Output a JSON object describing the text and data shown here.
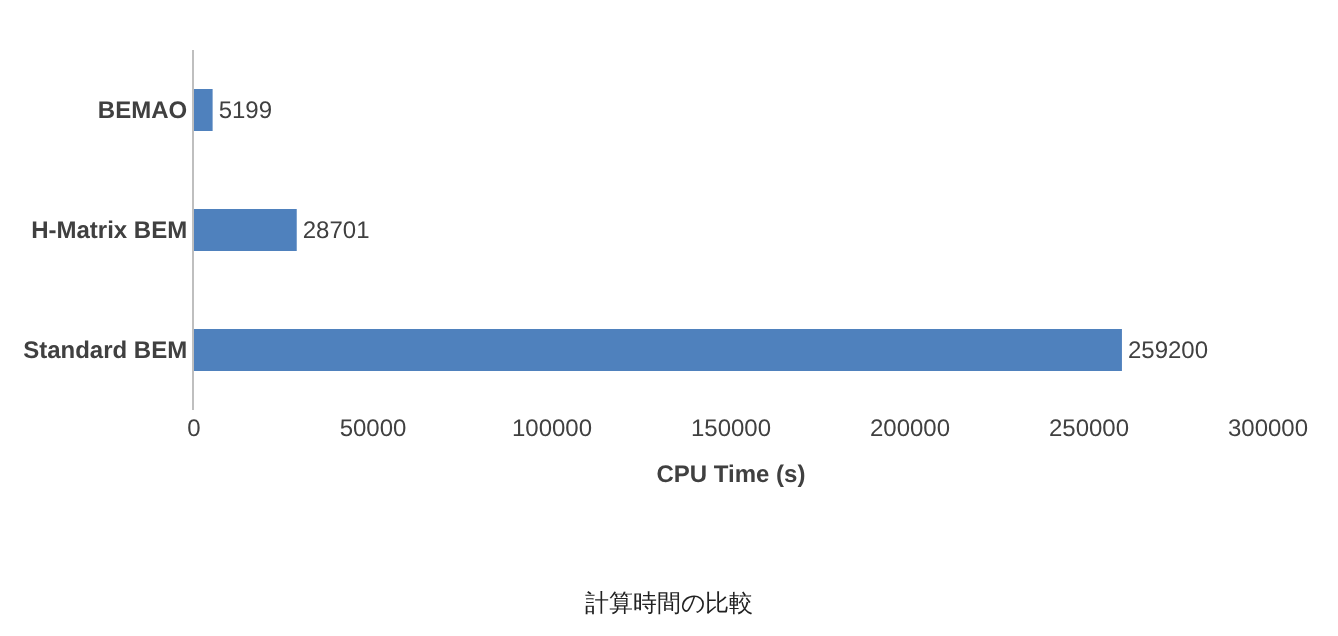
{
  "chart_data": {
    "type": "bar",
    "orientation": "horizontal",
    "title": "計算時間の比較",
    "xlabel": "CPU Time (s)",
    "categories": [
      "BEMAO",
      "H-Matrix BEM",
      "Standard BEM"
    ],
    "values": [
      5199,
      28701,
      259200
    ],
    "color": "#4f81bd",
    "xlim": [
      0,
      300000
    ],
    "xticks": [
      0,
      50000,
      100000,
      150000,
      200000,
      250000,
      300000
    ],
    "legend": false,
    "data_labels": true
  }
}
